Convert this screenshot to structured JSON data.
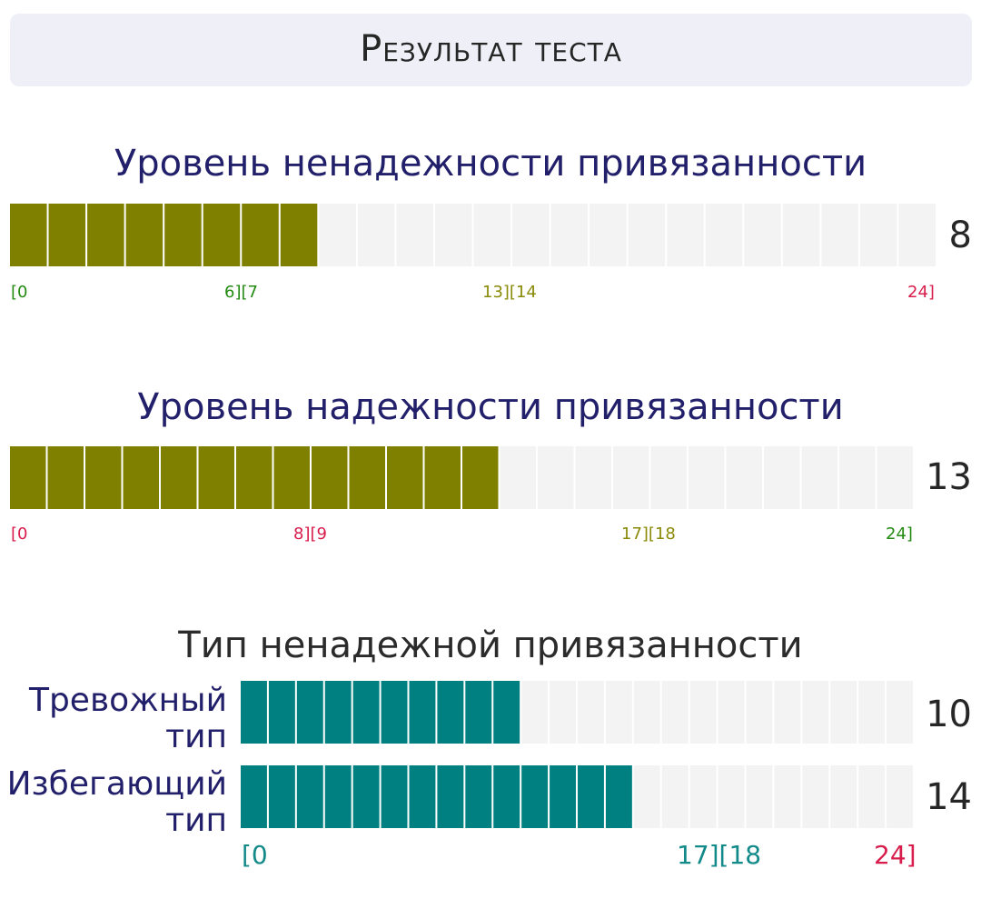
{
  "header": {
    "title": "Результат теста"
  },
  "chart_data": [
    {
      "type": "bar",
      "title": "Уровень ненадежности привязанности",
      "value": 8,
      "max": 24,
      "fill_color": "#808000",
      "ticks": [
        {
          "text": "[0",
          "color": "green"
        },
        {
          "text": "6][7",
          "color": "green"
        },
        {
          "text": "13][14",
          "color": "olive"
        },
        {
          "text": "24]",
          "color": "red"
        }
      ]
    },
    {
      "type": "bar",
      "title": "Уровень надежности привязанности",
      "value": 13,
      "max": 24,
      "fill_color": "#808000",
      "ticks": [
        {
          "text": "[0",
          "color": "red"
        },
        {
          "text": "8][9",
          "color": "red"
        },
        {
          "text": "17][18",
          "color": "olive"
        },
        {
          "text": "24]",
          "color": "green"
        }
      ]
    },
    {
      "type": "bar",
      "title": "Тип ненадежной привязанности",
      "max": 24,
      "fill_color": "#008080",
      "series": [
        {
          "name": "Тревожный тип",
          "value": 10
        },
        {
          "name": "Избегающий тип",
          "value": 14
        }
      ],
      "ticks": [
        {
          "text": "[0",
          "color": "teal"
        },
        {
          "text": "17][18",
          "color": "teal"
        },
        {
          "text": "24]",
          "color": "red"
        }
      ]
    }
  ]
}
